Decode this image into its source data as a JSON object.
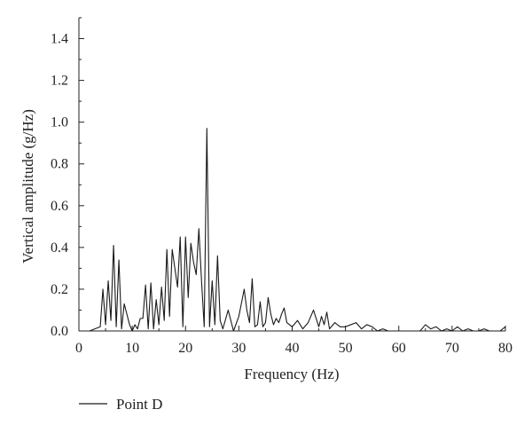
{
  "chart_data": {
    "type": "line",
    "title": "",
    "xlabel": "Frequency (Hz)",
    "ylabel": "Vertical amplitude (g/Hz)",
    "xlim": [
      0,
      80
    ],
    "ylim": [
      0,
      1.5
    ],
    "xticks": [
      "0",
      "10",
      "20",
      "30",
      "40",
      "50",
      "60",
      "70",
      "80"
    ],
    "yticks": [
      "0.0",
      "0.2",
      "0.4",
      "0.6",
      "0.8",
      "1.0",
      "1.2",
      "1.4"
    ],
    "grid": false,
    "legend_position": "bottom-left",
    "colors": {
      "line": "#1a1a1a",
      "axis": "#222222"
    },
    "series": [
      {
        "name": "Point D",
        "x": [
          2,
          3,
          4,
          4.5,
          5,
          5.5,
          6,
          6.5,
          7,
          7.5,
          8,
          8.5,
          9,
          9.5,
          10,
          10.5,
          11,
          11.5,
          12,
          12.5,
          13,
          13.5,
          14,
          14.5,
          15,
          15.5,
          16,
          16.5,
          17,
          17.5,
          18,
          18.5,
          19,
          19.5,
          20,
          20.5,
          21,
          21.5,
          22,
          22.5,
          23,
          23.5,
          24,
          24.5,
          25,
          25.5,
          26,
          26.5,
          27,
          28,
          29,
          30,
          31,
          31.5,
          32,
          32.5,
          33,
          33.5,
          34,
          34.5,
          35,
          35.5,
          36,
          36.5,
          37,
          37.5,
          38,
          38.5,
          39,
          40,
          41,
          42,
          43,
          44,
          45,
          45.5,
          46,
          46.5,
          47,
          48,
          49,
          50,
          51,
          52,
          53,
          54,
          55,
          56,
          57,
          58,
          59,
          60,
          62,
          64,
          65,
          66,
          67,
          68,
          69,
          70,
          71,
          72,
          73,
          74,
          75,
          76,
          77,
          78,
          79,
          80
        ],
        "y": [
          0.0,
          0.01,
          0.02,
          0.2,
          0.03,
          0.24,
          0.05,
          0.41,
          0.02,
          0.34,
          0.01,
          0.13,
          0.08,
          0.03,
          0.0,
          0.03,
          0.01,
          0.06,
          0.06,
          0.22,
          0.01,
          0.23,
          0.01,
          0.15,
          0.03,
          0.21,
          0.05,
          0.39,
          0.07,
          0.39,
          0.3,
          0.21,
          0.45,
          0.02,
          0.45,
          0.16,
          0.42,
          0.33,
          0.27,
          0.49,
          0.24,
          0.02,
          0.97,
          0.02,
          0.24,
          0.03,
          0.36,
          0.05,
          0.01,
          0.1,
          0.0,
          0.07,
          0.2,
          0.1,
          0.04,
          0.25,
          0.02,
          0.03,
          0.14,
          0.02,
          0.04,
          0.16,
          0.08,
          0.03,
          0.06,
          0.04,
          0.08,
          0.11,
          0.04,
          0.02,
          0.05,
          0.01,
          0.04,
          0.1,
          0.02,
          0.07,
          0.03,
          0.09,
          0.01,
          0.04,
          0.02,
          0.02,
          0.03,
          0.04,
          0.01,
          0.03,
          0.02,
          0.0,
          0.01,
          0.0,
          0.0,
          0.0,
          0.0,
          0.0,
          0.03,
          0.01,
          0.02,
          0.0,
          0.01,
          0.0,
          0.02,
          0.0,
          0.01,
          0.0,
          0.0,
          0.01,
          0.0,
          0.0,
          0.0,
          0.02
        ]
      }
    ]
  }
}
